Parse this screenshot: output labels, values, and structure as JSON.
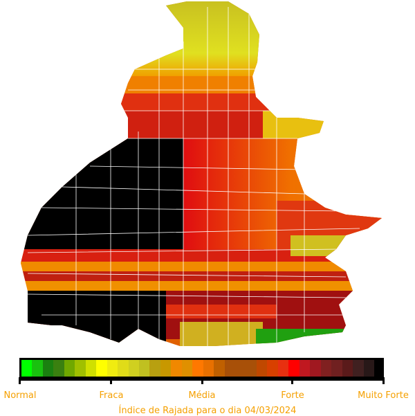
{
  "legend": {
    "labels": [
      "Normal",
      "Fraca",
      "Média",
      "Forte",
      "Muito Forte"
    ],
    "colors": [
      "#00ff00",
      "#19c10f",
      "#1a8010",
      "#3a8010",
      "#70a800",
      "#a0c000",
      "#d0e000",
      "#ffff00",
      "#f0ec10",
      "#e0dc18",
      "#d0d020",
      "#c0c020",
      "#b8a010",
      "#c89800",
      "#f08800",
      "#e09000",
      "#ff7800",
      "#e87000",
      "#c06000",
      "#a85008",
      "#a85008",
      "#a85008",
      "#c04800",
      "#d84000",
      "#e83010",
      "#ff0000",
      "#c01820",
      "#a01820",
      "#802020",
      "#702020",
      "#5a1a1a",
      "#402020",
      "#281818"
    ]
  },
  "title": "Índice de Rajada para o dia 04/03/2024"
}
